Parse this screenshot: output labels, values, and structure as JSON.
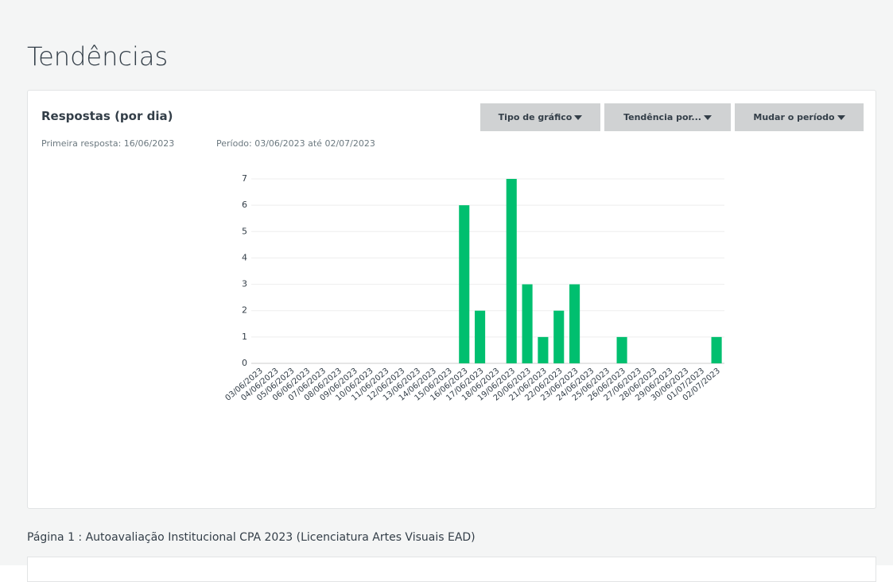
{
  "header": {
    "title": "Tendências"
  },
  "card": {
    "title": "Respostas (por dia)",
    "first_response": "Primeira resposta: 16/06/2023",
    "period": "Período: 03/06/2023 até 02/07/2023",
    "buttons": [
      "Tipo de gráfico",
      "Tendência por...",
      "Mudar o período"
    ]
  },
  "chart_data": {
    "type": "bar",
    "color": "#00bf6f",
    "grid": true,
    "categories": [
      "03/06/2023",
      "04/06/2023",
      "05/06/2023",
      "06/06/2023",
      "07/06/2023",
      "08/06/2023",
      "09/06/2023",
      "10/06/2023",
      "11/06/2023",
      "12/06/2023",
      "13/06/2023",
      "14/06/2023",
      "15/06/2023",
      "16/06/2023",
      "17/06/2023",
      "18/06/2023",
      "19/06/2023",
      "20/06/2023",
      "21/06/2023",
      "22/06/2023",
      "23/06/2023",
      "24/06/2023",
      "25/06/2023",
      "26/06/2023",
      "27/06/2023",
      "28/06/2023",
      "29/06/2023",
      "30/06/2023",
      "01/07/2023",
      "02/07/2023"
    ],
    "values": [
      0,
      0,
      0,
      0,
      0,
      0,
      0,
      0,
      0,
      0,
      0,
      0,
      0,
      6,
      2,
      0,
      7,
      3,
      1,
      2,
      3,
      0,
      0,
      1,
      0,
      0,
      0,
      0,
      0,
      1
    ],
    "ylim": [
      0,
      7
    ],
    "yticks": [
      0,
      1,
      2,
      3,
      4,
      5,
      6,
      7
    ]
  },
  "footer": {
    "page_label": "Página 1 : Autoavaliação Institucional CPA 2023 (Licenciatura Artes Visuais EAD)"
  }
}
